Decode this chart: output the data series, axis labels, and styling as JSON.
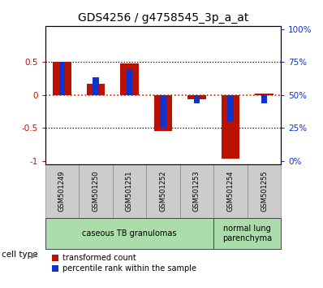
{
  "title": "GDS4256 / g4758545_3p_a_at",
  "samples": [
    "GSM501249",
    "GSM501250",
    "GSM501251",
    "GSM501252",
    "GSM501253",
    "GSM501254",
    "GSM501255"
  ],
  "red_values": [
    0.5,
    0.17,
    0.48,
    -0.55,
    -0.07,
    -0.97,
    0.02
  ],
  "blue_values": [
    0.5,
    0.27,
    0.38,
    -0.5,
    -0.13,
    -0.4,
    -0.13
  ],
  "cell_type_groups": [
    {
      "label": "caseous TB granulomas",
      "start": 0,
      "end": 5
    },
    {
      "label": "normal lung\nparenchyma",
      "start": 5,
      "end": 7
    }
  ],
  "ylim_min": -1.05,
  "ylim_max": 1.05,
  "yticks_left": [
    -1,
    -0.5,
    0,
    0.5
  ],
  "ytick_labels_left": [
    "-1",
    "-0.5",
    "0",
    "0.5"
  ],
  "yticks_right": [
    -1,
    -0.5,
    0,
    0.5,
    1
  ],
  "ytick_labels_right": [
    "0%",
    "25%",
    "50%",
    "75%",
    "100%"
  ],
  "red_color": "#bb1100",
  "blue_color": "#1133cc",
  "red_bar_width": 0.55,
  "blue_bar_width": 0.18,
  "legend_red": "transformed count",
  "legend_blue": "percentile rank within the sample",
  "sample_box_color": "#cccccc",
  "cell_type_color": "#aaddaa",
  "hline0_color": "#cc2200",
  "hline05_color": "black"
}
